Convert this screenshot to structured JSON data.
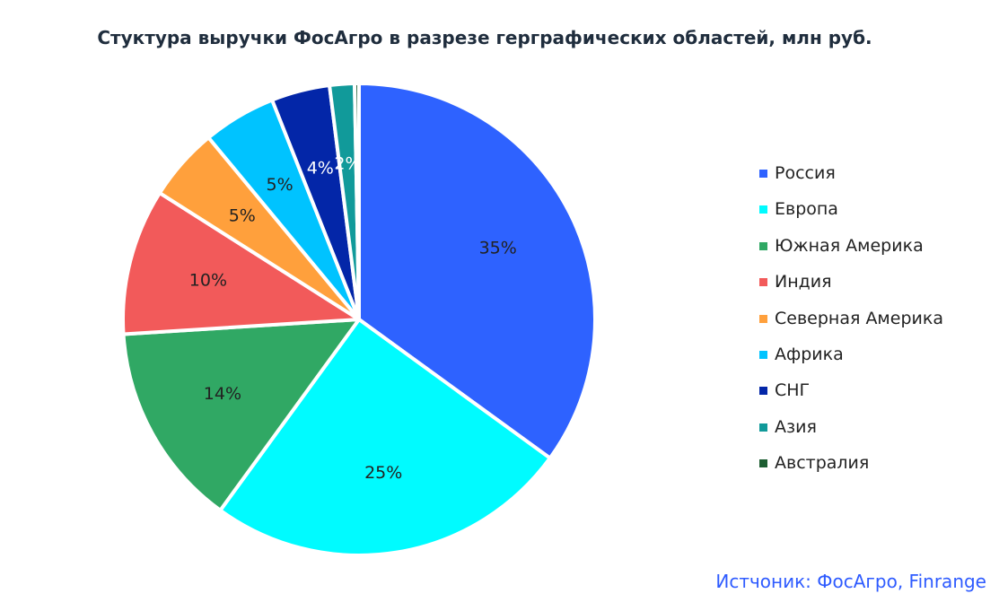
{
  "title": "Стуктура выручки ФосАгро в разрезе герграфических областей, млн руб.",
  "source": "Истчоник: ФосАгро, Finrange",
  "chart_data": {
    "type": "pie",
    "title": "Стуктура выручки ФосАгро в разрезе герграфических областей, млн руб.",
    "legend_position": "right",
    "start_angle_deg": 0,
    "direction": "clockwise",
    "slices": [
      {
        "name": "Россия",
        "value": 35,
        "label": "35%",
        "color": "#2e62ff",
        "label_color": "#222222"
      },
      {
        "name": "Европа",
        "value": 25,
        "label": "25%",
        "color": "#00fbff",
        "label_color": "#222222"
      },
      {
        "name": "Южная Америка",
        "value": 14,
        "label": "14%",
        "color": "#30a864",
        "label_color": "#222222"
      },
      {
        "name": "Индия",
        "value": 10,
        "label": "10%",
        "color": "#f25a5a",
        "label_color": "#222222"
      },
      {
        "name": "Северная Америка",
        "value": 5,
        "label": "5%",
        "color": "#ffa03c",
        "label_color": "#222222"
      },
      {
        "name": "Африка",
        "value": 5,
        "label": "5%",
        "color": "#00c3ff",
        "label_color": "#222222"
      },
      {
        "name": "СНГ",
        "value": 4,
        "label": "4%",
        "color": "#0326a8",
        "label_color": "#ffffff"
      },
      {
        "name": "Азия",
        "value": 1.7,
        "label": "2%",
        "color": "#119a9a",
        "label_color": "#ffffff"
      },
      {
        "name": "Австралия",
        "value": 0.3,
        "label": "",
        "color": "#1d5e32",
        "label_color": "#ffffff"
      }
    ]
  }
}
